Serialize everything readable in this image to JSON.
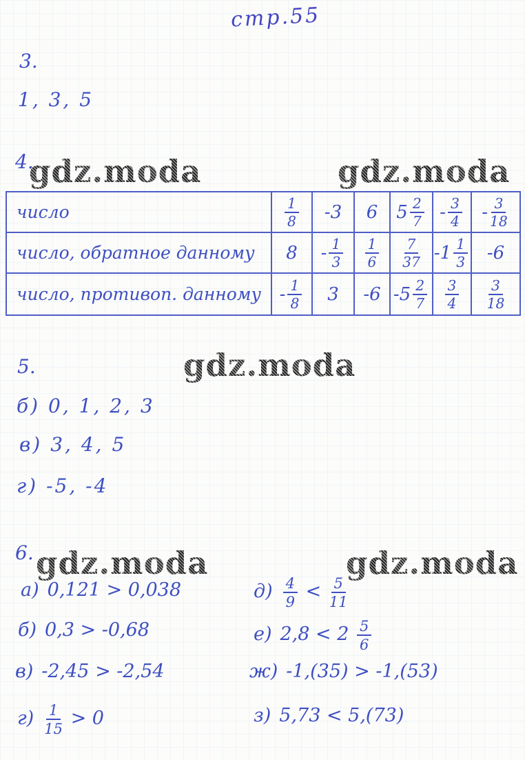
{
  "page": {
    "title": "стр.55",
    "watermark": "gdz.moda",
    "ink_color": "#3e4fc2",
    "border_color": "#4f5ec8"
  },
  "problem3": {
    "label": "3.",
    "answer": "1, 3, 5"
  },
  "problem4": {
    "label": "4.",
    "table": {
      "row_headers": [
        "число",
        "число, обратное данному",
        "число, противоп. данному"
      ],
      "rows": [
        [
          [
            {
              "f": [
                "1",
                "8"
              ]
            }
          ],
          [
            {
              "t": "-3"
            }
          ],
          [
            {
              "t": "6"
            }
          ],
          [
            {
              "t": "5"
            },
            {
              "f": [
                "2",
                "7"
              ]
            }
          ],
          [
            {
              "t": "-"
            },
            {
              "f": [
                "3",
                "4"
              ]
            }
          ],
          [
            {
              "t": "-"
            },
            {
              "f": [
                "3",
                "18"
              ]
            }
          ]
        ],
        [
          [
            {
              "t": "8"
            }
          ],
          [
            {
              "t": "-"
            },
            {
              "f": [
                "1",
                "3"
              ]
            }
          ],
          [
            {
              "f": [
                "1",
                "6"
              ]
            }
          ],
          [
            {
              "f": [
                "7",
                "37"
              ]
            }
          ],
          [
            {
              "t": "-1"
            },
            {
              "f": [
                "1",
                "3"
              ]
            }
          ],
          [
            {
              "t": "-6"
            }
          ]
        ],
        [
          [
            {
              "t": "-"
            },
            {
              "f": [
                "1",
                "8"
              ]
            }
          ],
          [
            {
              "t": "3"
            }
          ],
          [
            {
              "t": "-6"
            }
          ],
          [
            {
              "t": "-5"
            },
            {
              "f": [
                "2",
                "7"
              ]
            }
          ],
          [
            {
              "f": [
                "3",
                "4"
              ]
            }
          ],
          [
            {
              "f": [
                "3",
                "18"
              ]
            }
          ]
        ]
      ]
    }
  },
  "problem5": {
    "label": "5.",
    "items": [
      {
        "label": "б)",
        "text": "0, 1, 2, 3"
      },
      {
        "label": "в)",
        "text": "3, 4, 5"
      },
      {
        "label": "г)",
        "text": "-5, -4"
      }
    ]
  },
  "problem6": {
    "label": "6.",
    "left_items": [
      {
        "label": "а)",
        "parts": [
          {
            "t": "0,121 > 0,038"
          }
        ]
      },
      {
        "label": "б)",
        "parts": [
          {
            "t": "0,3 > -0,68"
          }
        ]
      },
      {
        "label": "в)",
        "parts": [
          {
            "t": "-2,45 > -2,54"
          }
        ]
      },
      {
        "label": "г)",
        "parts": [
          {
            "f": [
              "1",
              "15"
            ]
          },
          {
            "t": " > 0"
          }
        ]
      }
    ],
    "right_items": [
      {
        "label": "д)",
        "parts": [
          {
            "f": [
              "4",
              "9"
            ]
          },
          {
            "t": " < "
          },
          {
            "f": [
              "5",
              "11"
            ]
          }
        ]
      },
      {
        "label": "е)",
        "parts": [
          {
            "t": "2,8 < 2 "
          },
          {
            "f": [
              "5",
              "6"
            ]
          }
        ]
      },
      {
        "label": "ж)",
        "parts": [
          {
            "t": "-1,(35) > -1,(53)"
          }
        ]
      },
      {
        "label": "з)",
        "parts": [
          {
            "t": "5,73 < 5,(73)"
          }
        ]
      }
    ]
  }
}
